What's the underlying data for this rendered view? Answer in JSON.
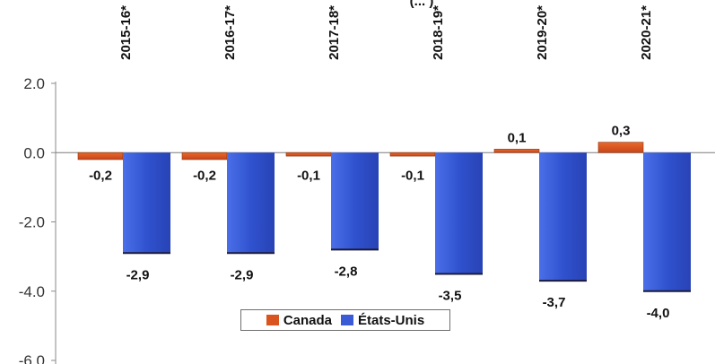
{
  "chart_data": {
    "type": "bar",
    "title": "(... )",
    "categories": [
      "2015-16*",
      "2016-17*",
      "2017-18*",
      "2018-19*",
      "2019-20*",
      "2020-21*"
    ],
    "series": [
      {
        "name": "Canada",
        "values": [
          -0.2,
          -0.2,
          -0.1,
          -0.1,
          0.1,
          0.3
        ],
        "labels": [
          "-0,2",
          "-0,2",
          "-0,1",
          "-0,1",
          "0,1",
          "0,3"
        ],
        "color": "#d9541e"
      },
      {
        "name": "États-Unis",
        "values": [
          -2.9,
          -2.9,
          -2.8,
          -3.5,
          -3.7,
          -4.0
        ],
        "labels": [
          "-2,9",
          "-2,9",
          "-2,8",
          "-3,5",
          "-3,7",
          "-4,0"
        ],
        "color": "#3f5fd6"
      }
    ],
    "yticks": [
      "2.0",
      "0.0",
      "-2.0",
      "-4.0",
      "-6.0"
    ],
    "ylim": [
      -6.0,
      2.0
    ],
    "legend_position": "bottom-center",
    "grid": false
  },
  "legend": {
    "canada": "Canada",
    "usa": "États-Unis"
  }
}
